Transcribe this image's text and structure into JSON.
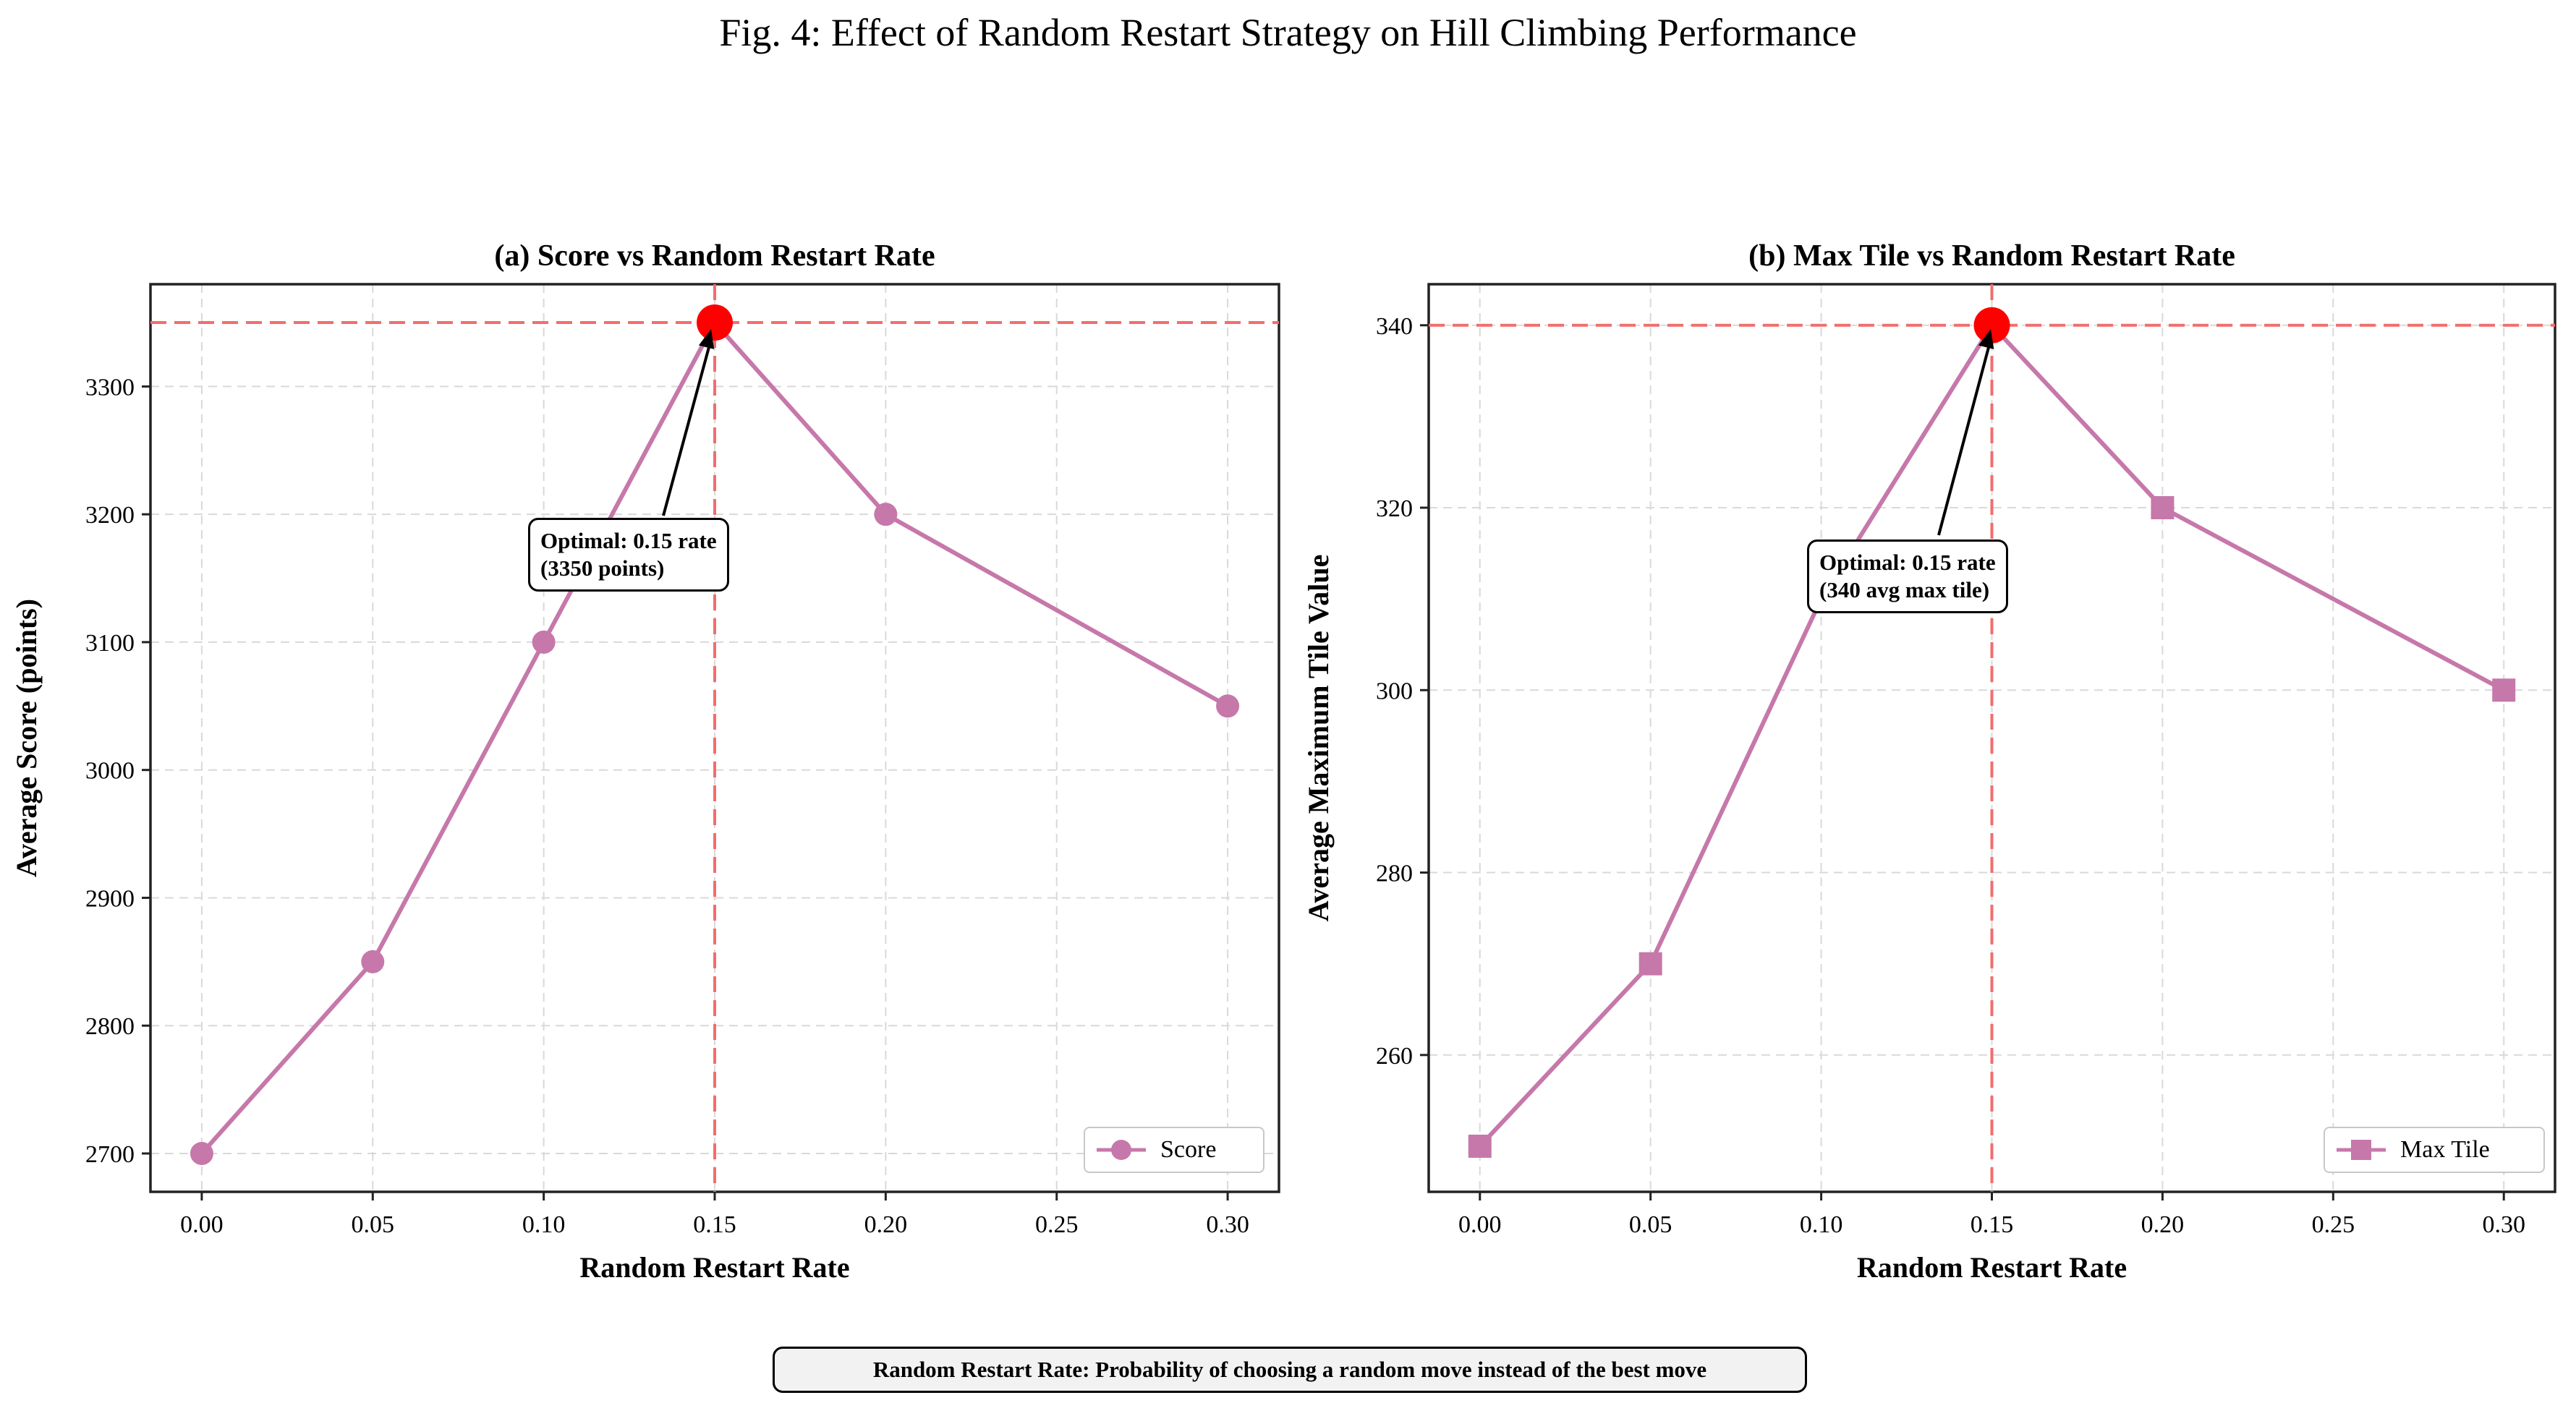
{
  "figure": {
    "title": "Fig. 4: Effect of Random Restart Strategy on Hill Climbing Performance",
    "footnote": "Random Restart Rate: Probability of choosing a random move instead of the best move"
  },
  "colors": {
    "series": "#c678aa",
    "optimal_marker": "#ff0000",
    "reference_line": "#f26d6d",
    "grid": "#d9d9d9"
  },
  "chart_data": [
    {
      "type": "line",
      "title": "(a) Score vs Random Restart Rate",
      "xlabel": "Random Restart Rate",
      "ylabel": "Average Score (points)",
      "x": [
        0.0,
        0.05,
        0.1,
        0.15,
        0.2,
        0.3
      ],
      "series": [
        {
          "name": "Score",
          "marker": "circle",
          "values": [
            2700,
            2850,
            3100,
            3350,
            3200,
            3050
          ]
        }
      ],
      "xlim": [
        -0.015,
        0.315
      ],
      "ylim": [
        2670,
        3380
      ],
      "xticks": [
        "0.00",
        "0.05",
        "0.10",
        "0.15",
        "0.20",
        "0.25",
        "0.30"
      ],
      "xtick_values": [
        0.0,
        0.05,
        0.1,
        0.15,
        0.2,
        0.25,
        0.3
      ],
      "yticks": [
        2700,
        2800,
        2900,
        3000,
        3100,
        3200,
        3300
      ],
      "optimal": {
        "x": 0.15,
        "y": 3350
      },
      "annotation": [
        "Optimal: 0.15 rate",
        "(3350 points)"
      ],
      "legend_position": "lower-right",
      "grid": true
    },
    {
      "type": "line",
      "title": "(b) Max Tile vs Random Restart Rate",
      "xlabel": "Random Restart Rate",
      "ylabel": "Average Maximum Tile Value",
      "x": [
        0.0,
        0.05,
        0.1,
        0.15,
        0.2,
        0.3
      ],
      "series": [
        {
          "name": "Max Tile",
          "marker": "square",
          "values": [
            250,
            270,
            310,
            340,
            320,
            300
          ]
        }
      ],
      "xlim": [
        -0.015,
        0.315
      ],
      "ylim": [
        245,
        344.5
      ],
      "xticks": [
        "0.00",
        "0.05",
        "0.10",
        "0.15",
        "0.20",
        "0.25",
        "0.30"
      ],
      "xtick_values": [
        0.0,
        0.05,
        0.1,
        0.15,
        0.2,
        0.25,
        0.3
      ],
      "yticks": [
        260,
        280,
        300,
        320,
        340
      ],
      "optimal": {
        "x": 0.15,
        "y": 340
      },
      "annotation": [
        "Optimal: 0.15 rate",
        "(340 avg max tile)"
      ],
      "legend_position": "lower-right",
      "grid": true
    }
  ]
}
